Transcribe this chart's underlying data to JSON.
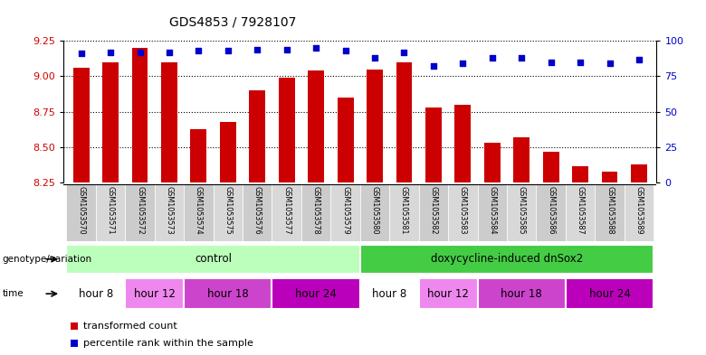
{
  "title": "GDS4853 / 7928107",
  "samples": [
    "GSM1053570",
    "GSM1053571",
    "GSM1053572",
    "GSM1053573",
    "GSM1053574",
    "GSM1053575",
    "GSM1053576",
    "GSM1053577",
    "GSM1053578",
    "GSM1053579",
    "GSM1053580",
    "GSM1053581",
    "GSM1053582",
    "GSM1053583",
    "GSM1053584",
    "GSM1053585",
    "GSM1053586",
    "GSM1053587",
    "GSM1053588",
    "GSM1053589"
  ],
  "transformed_count": [
    9.06,
    9.1,
    9.2,
    9.1,
    8.63,
    8.68,
    8.9,
    8.99,
    9.04,
    8.85,
    9.05,
    9.1,
    8.78,
    8.8,
    8.53,
    8.57,
    8.47,
    8.37,
    8.33,
    8.38
  ],
  "percentile_rank": [
    91,
    92,
    92,
    92,
    93,
    93,
    94,
    94,
    95,
    93,
    88,
    92,
    82,
    84,
    88,
    88,
    85,
    85,
    84,
    87
  ],
  "ylim_left": [
    8.25,
    9.25
  ],
  "ylim_right": [
    0,
    100
  ],
  "yticks_left": [
    8.25,
    8.5,
    8.75,
    9.0,
    9.25
  ],
  "yticks_right": [
    0,
    25,
    50,
    75,
    100
  ],
  "bar_color": "#cc0000",
  "dot_color": "#0000cc",
  "genotype_groups": [
    {
      "label": "control",
      "start": 0,
      "end": 10,
      "color": "#bbffbb"
    },
    {
      "label": "doxycycline-induced dnSox2",
      "start": 10,
      "end": 20,
      "color": "#44cc44"
    }
  ],
  "time_groups": [
    {
      "label": "hour 8",
      "start": 0,
      "end": 2,
      "color": "#ffffff"
    },
    {
      "label": "hour 12",
      "start": 2,
      "end": 4,
      "color": "#ee88ee"
    },
    {
      "label": "hour 18",
      "start": 4,
      "end": 7,
      "color": "#cc44cc"
    },
    {
      "label": "hour 24",
      "start": 7,
      "end": 10,
      "color": "#bb00bb"
    },
    {
      "label": "hour 8",
      "start": 10,
      "end": 12,
      "color": "#ffffff"
    },
    {
      "label": "hour 12",
      "start": 12,
      "end": 14,
      "color": "#ee88ee"
    },
    {
      "label": "hour 18",
      "start": 14,
      "end": 17,
      "color": "#cc44cc"
    },
    {
      "label": "hour 24",
      "start": 17,
      "end": 20,
      "color": "#bb00bb"
    }
  ],
  "legend_bar_label": "transformed count",
  "legend_dot_label": "percentile rank within the sample",
  "genotype_label": "genotype/variation",
  "time_label": "time",
  "bg_color": "#ffffff",
  "tick_color_left": "#cc0000",
  "tick_color_right": "#0000cc",
  "sample_bg_color": "#d0d0d0"
}
